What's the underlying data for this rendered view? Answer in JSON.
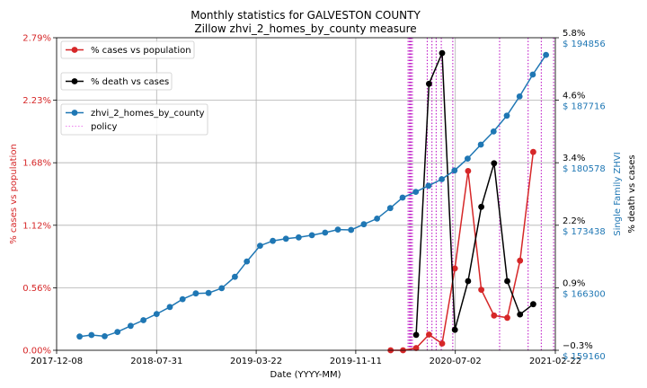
{
  "chart_data": {
    "type": "line",
    "title": "Monthly statistics for GALVESTON COUNTY",
    "subtitle": "Zillow zhvi_2_homes_by_county measure",
    "xlabel": "Date (YYYY-MM)",
    "ylabel_left": "% cases vs population",
    "ylabel_right_inner": "Single Family ZHVI",
    "ylabel_right_outer": "% death vs cases",
    "x_ticks": [
      "2017-12-08",
      "2018-07-31",
      "2019-03-22",
      "2019-11-11",
      "2020-07-02",
      "2021-02-22"
    ],
    "x_range": [
      "2017-12-08",
      "2021-02-22"
    ],
    "left_axis": {
      "ticks": [
        "0.00%",
        "0.56%",
        "1.12%",
        "1.68%",
        "2.23%",
        "2.79%"
      ],
      "range": [
        0,
        2.79
      ],
      "color": "#d62728"
    },
    "right_outer_axis": {
      "ticks": [
        "−0.3%",
        "0.9%",
        "2.2%",
        "3.4%",
        "4.6%",
        "5.8%"
      ],
      "range": [
        -0.3,
        5.8
      ],
      "color": "#000000"
    },
    "right_inner_axis": {
      "ticks": [
        "$ 159160",
        "$ 166300",
        "$ 173438",
        "$ 180578",
        "$ 187716",
        "$ 194856"
      ],
      "range": [
        159160,
        194856
      ],
      "color": "#1f77b4"
    },
    "grid": true,
    "legend_placement": "top-left",
    "legend": [
      {
        "label": "% cases vs population",
        "color": "#d62728"
      },
      {
        "label": "% death vs cases",
        "color": "#000000"
      },
      {
        "label": "zhvi_2_homes_by_county",
        "color": "#1f77b4"
      },
      {
        "label": "policy",
        "color": "#ee82ee"
      }
    ],
    "series": [
      {
        "name": "% cases vs population",
        "axis": "left",
        "color": "#d62728",
        "points": [
          [
            "2020-02-01",
            0.0
          ],
          [
            "2020-03-01",
            0.0
          ],
          [
            "2020-04-01",
            0.02
          ],
          [
            "2020-05-01",
            0.14
          ],
          [
            "2020-06-01",
            0.06
          ],
          [
            "2020-07-01",
            0.73
          ],
          [
            "2020-08-01",
            1.6
          ],
          [
            "2020-09-01",
            0.54
          ],
          [
            "2020-10-01",
            0.31
          ],
          [
            "2020-11-01",
            0.29
          ],
          [
            "2020-12-01",
            0.8
          ],
          [
            "2021-01-01",
            1.77
          ]
        ]
      },
      {
        "name": "% death vs cases",
        "axis": "right_outer",
        "color": "#000000",
        "points": [
          [
            "2020-04-01",
            0.0
          ],
          [
            "2020-05-01",
            4.9
          ],
          [
            "2020-06-01",
            5.5
          ],
          [
            "2020-07-01",
            0.1
          ],
          [
            "2020-08-01",
            1.05
          ],
          [
            "2020-09-01",
            2.5
          ],
          [
            "2020-10-01",
            3.35
          ],
          [
            "2020-11-01",
            1.05
          ],
          [
            "2020-12-01",
            0.4
          ],
          [
            "2021-01-01",
            0.6
          ]
        ]
      },
      {
        "name": "zhvi_2_homes_by_county",
        "axis": "right_inner",
        "color": "#1f77b4",
        "points": [
          [
            "2018-01-31",
            160730
          ],
          [
            "2018-02-28",
            160900
          ],
          [
            "2018-03-31",
            160760
          ],
          [
            "2018-04-30",
            161250
          ],
          [
            "2018-05-31",
            161950
          ],
          [
            "2018-06-30",
            162600
          ],
          [
            "2018-07-31",
            163300
          ],
          [
            "2018-08-31",
            164100
          ],
          [
            "2018-09-30",
            165000
          ],
          [
            "2018-10-31",
            165650
          ],
          [
            "2018-11-30",
            165700
          ],
          [
            "2018-12-31",
            166250
          ],
          [
            "2019-01-31",
            167550
          ],
          [
            "2019-02-28",
            169300
          ],
          [
            "2019-03-31",
            171100
          ],
          [
            "2019-04-30",
            171650
          ],
          [
            "2019-05-31",
            171900
          ],
          [
            "2019-06-30",
            172050
          ],
          [
            "2019-07-31",
            172300
          ],
          [
            "2019-08-31",
            172600
          ],
          [
            "2019-09-30",
            172950
          ],
          [
            "2019-10-31",
            172900
          ],
          [
            "2019-11-30",
            173550
          ],
          [
            "2019-12-31",
            174200
          ],
          [
            "2020-01-31",
            175400
          ],
          [
            "2020-02-29",
            176600
          ],
          [
            "2020-03-31",
            177250
          ],
          [
            "2020-04-30",
            177950
          ],
          [
            "2020-05-31",
            178700
          ],
          [
            "2020-06-30",
            179700
          ],
          [
            "2020-07-31",
            181050
          ],
          [
            "2020-08-31",
            182650
          ],
          [
            "2020-09-30",
            184150
          ],
          [
            "2020-10-31",
            185950
          ],
          [
            "2020-11-30",
            188150
          ],
          [
            "2020-12-31",
            190650
          ],
          [
            "2021-01-31",
            192900
          ]
        ]
      }
    ],
    "policy_dates": [
      "2020-03-13",
      "2020-03-16",
      "2020-03-18",
      "2020-03-20",
      "2020-03-23",
      "2020-04-27",
      "2020-05-08",
      "2020-05-18",
      "2020-05-30",
      "2020-06-26",
      "2020-10-14",
      "2020-12-20",
      "2021-01-20",
      "2021-02-18"
    ]
  }
}
